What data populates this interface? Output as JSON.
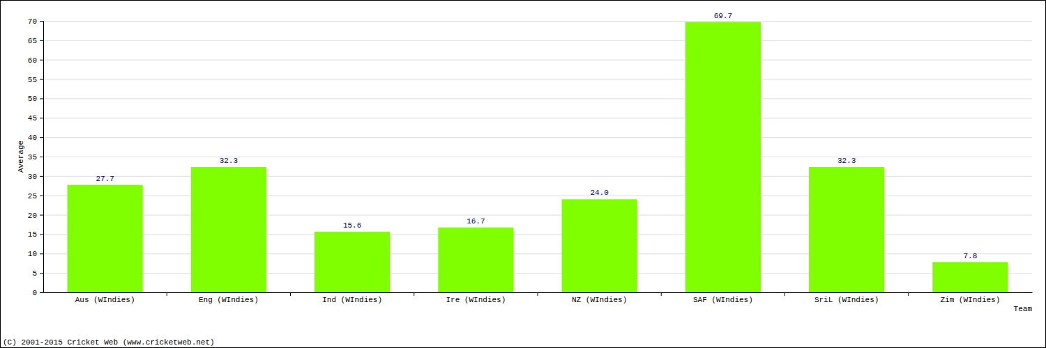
{
  "chart_data": {
    "type": "bar",
    "x_label": "Team",
    "y_label": "Average",
    "categories": [
      "Aus (WIndies)",
      "Eng (WIndies)",
      "Ind (WIndies)",
      "Ire (WIndies)",
      "NZ (WIndies)",
      "SAF (WIndies)",
      "SriL (WIndies)",
      "Zim (WIndies)"
    ],
    "values": [
      27.7,
      32.3,
      15.6,
      16.7,
      24.0,
      69.7,
      32.3,
      7.8
    ],
    "value_labels": [
      "27.7",
      "32.3",
      "15.6",
      "16.7",
      "24.0",
      "69.7",
      "32.3",
      "7.8"
    ],
    "color": "#7fff00",
    "ylim": [
      0,
      70
    ],
    "yticks": [
      0,
      5,
      10,
      15,
      20,
      25,
      30,
      35,
      40,
      45,
      50,
      55,
      60,
      65,
      70
    ],
    "grid": true,
    "data_labels": true,
    "annotations": [
      "(C) 2001-2015 Cricket Web (www.cricketweb.net)"
    ]
  }
}
